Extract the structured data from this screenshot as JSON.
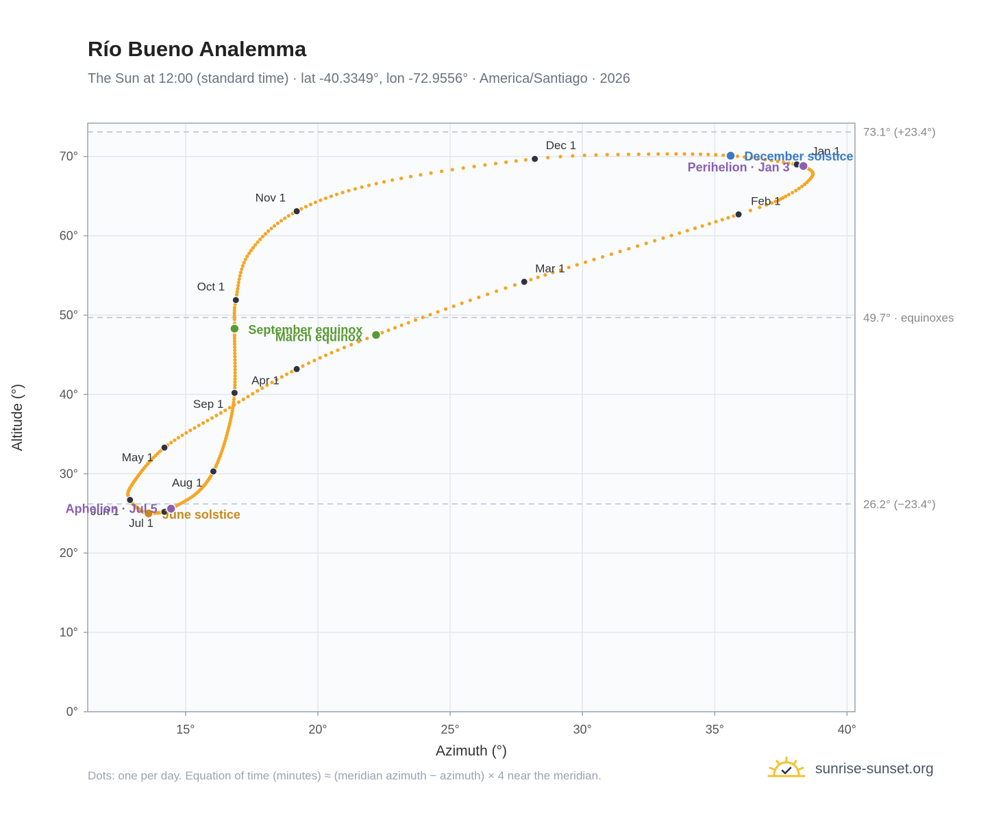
{
  "header": {
    "title": "Río Bueno Analemma",
    "subtitle": "The Sun at 12:00 (standard time) · lat -40.3349°, lon -72.9556° · America/Santiago · 2026"
  },
  "footer": {
    "note": "Dots: one per day. Equation of time (minutes) ≈ (meridian azimuth − azimuth) × 4 near the meridian.",
    "brand": "sunrise-sunset.org"
  },
  "colors": {
    "curve": "#f5a623",
    "month_marker": "#2d3340",
    "equinox": "#5a9a32",
    "june_solstice": "#c98a1a",
    "december_solstice": "#3a7bc8",
    "apsis": "#8a5fb0",
    "grid": "#e3e7ec",
    "reference_line": "#b8c2cc",
    "plot_bg": "#f9fbfd"
  },
  "chart_data": {
    "type": "scatter",
    "title": "Río Bueno Analemma",
    "xlabel": "Azimuth (°)",
    "ylabel": "Altitude (°)",
    "xlim": [
      11.3,
      40.3
    ],
    "ylim": [
      0,
      74.2
    ],
    "x_ticks": [
      15,
      20,
      25,
      30,
      35,
      40
    ],
    "y_ticks": [
      0,
      10,
      20,
      30,
      40,
      50,
      60,
      70
    ],
    "x_tick_labels": [
      "15°",
      "20°",
      "25°",
      "30°",
      "35°",
      "40°"
    ],
    "y_tick_labels": [
      "0°",
      "10°",
      "20°",
      "30°",
      "40°",
      "50°",
      "60°",
      "70°"
    ],
    "grid": true,
    "reference_lines": [
      {
        "y": 73.1,
        "label": "73.1° (+23.4°)"
      },
      {
        "y": 49.7,
        "label": "49.7° · equinoxes"
      },
      {
        "y": 26.2,
        "label": "26.2° (−23.4°)"
      }
    ],
    "path_anchors": [
      {
        "day": 1,
        "x": 38.1,
        "y": 69.0
      },
      {
        "day": 3,
        "x": 38.35,
        "y": 68.8
      },
      {
        "day": 12,
        "x": 38.7,
        "y": 67.6
      },
      {
        "day": 22,
        "x": 37.8,
        "y": 65.2
      },
      {
        "day": 32,
        "x": 35.9,
        "y": 62.7
      },
      {
        "day": 60,
        "x": 27.8,
        "y": 54.2
      },
      {
        "day": 79,
        "x": 22.2,
        "y": 47.5
      },
      {
        "day": 91,
        "x": 19.2,
        "y": 43.2
      },
      {
        "day": 106,
        "x": 16.5,
        "y": 38.0
      },
      {
        "day": 121,
        "x": 14.2,
        "y": 33.3
      },
      {
        "day": 141,
        "x": 12.95,
        "y": 28.5
      },
      {
        "day": 152,
        "x": 12.9,
        "y": 26.7
      },
      {
        "day": 162,
        "x": 13.3,
        "y": 25.4
      },
      {
        "day": 172,
        "x": 13.6,
        "y": 25.0
      },
      {
        "day": 182,
        "x": 14.2,
        "y": 25.2
      },
      {
        "day": 186,
        "x": 14.45,
        "y": 25.6
      },
      {
        "day": 198,
        "x": 15.4,
        "y": 27.5
      },
      {
        "day": 213,
        "x": 16.05,
        "y": 30.3
      },
      {
        "day": 228,
        "x": 16.55,
        "y": 34.8
      },
      {
        "day": 244,
        "x": 16.85,
        "y": 40.2
      },
      {
        "day": 266,
        "x": 16.85,
        "y": 48.3
      },
      {
        "day": 274,
        "x": 16.9,
        "y": 51.9
      },
      {
        "day": 289,
        "x": 17.4,
        "y": 57.8
      },
      {
        "day": 305,
        "x": 19.2,
        "y": 63.1
      },
      {
        "day": 320,
        "x": 22.5,
        "y": 66.8
      },
      {
        "day": 335,
        "x": 28.2,
        "y": 69.7
      },
      {
        "day": 345,
        "x": 32.5,
        "y": 70.3
      },
      {
        "day": 355,
        "x": 35.6,
        "y": 70.1
      },
      {
        "day": 366,
        "x": 38.1,
        "y": 69.0
      }
    ],
    "month_markers": [
      {
        "label": "Jan 1",
        "x": 38.1,
        "y": 69.0
      },
      {
        "label": "Feb 1",
        "x": 35.9,
        "y": 62.7
      },
      {
        "label": "Mar 1",
        "x": 27.8,
        "y": 54.2
      },
      {
        "label": "Apr 1",
        "x": 19.2,
        "y": 43.2
      },
      {
        "label": "May 1",
        "x": 14.2,
        "y": 33.3
      },
      {
        "label": "Jun 1",
        "x": 12.9,
        "y": 26.7
      },
      {
        "label": "Jul 1",
        "x": 14.2,
        "y": 25.2
      },
      {
        "label": "Aug 1",
        "x": 16.05,
        "y": 30.3
      },
      {
        "label": "Sep 1",
        "x": 16.85,
        "y": 40.2
      },
      {
        "label": "Oct 1",
        "x": 16.9,
        "y": 51.9
      },
      {
        "label": "Nov 1",
        "x": 19.2,
        "y": 63.1
      },
      {
        "label": "Dec 1",
        "x": 28.2,
        "y": 69.7
      }
    ],
    "events": [
      {
        "label": "December solstice",
        "x": 35.6,
        "y": 70.1,
        "kind": "december_solstice"
      },
      {
        "label": "Perihelion · Jan 3",
        "x": 38.35,
        "y": 68.8,
        "kind": "apsis"
      },
      {
        "label": "September equinox",
        "x": 16.85,
        "y": 48.3,
        "kind": "equinox"
      },
      {
        "label": "March equinox",
        "x": 22.2,
        "y": 47.5,
        "kind": "equinox"
      },
      {
        "label": "June solstice",
        "x": 13.6,
        "y": 25.0,
        "kind": "june_solstice"
      },
      {
        "label": "Aphelion · Jul 5",
        "x": 14.45,
        "y": 25.6,
        "kind": "apsis"
      }
    ]
  }
}
